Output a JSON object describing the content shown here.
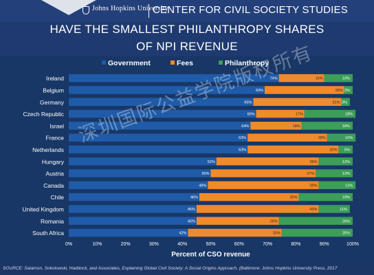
{
  "header": {
    "institution": "Johns Hopkins University",
    "center": "CENTER FOR CIVIL SOCIETY STUDIES"
  },
  "watermark": "深圳国际公益学院版权所有",
  "footer": {
    "source": "SOURCE: Salamon, Sokolowski, Haddock, and Associates, Explaining Global Civil Society: A Social Origins Approach, (Baltimore: Johns Hopkins University Press, 2017"
  },
  "colors": {
    "government": "#1f5ba8",
    "fees": "#f08a2b",
    "philanthropy": "#3c9e58"
  },
  "chart_data": {
    "type": "bar",
    "orientation": "horizontal",
    "stacked": true,
    "title": "HAVE THE SMALLEST PHILANTHROPY SHARES",
    "subtitle": "OF NPI REVENUE",
    "xlabel": "Percent of CSO revenue",
    "ylabel": "",
    "xlim": [
      0,
      100
    ],
    "x_ticks": [
      "0%",
      "10%",
      "20%",
      "30%",
      "40%",
      "50%",
      "60%",
      "70%",
      "80%",
      "90%",
      "100%"
    ],
    "legend_position": "top",
    "categories": [
      "Ireland",
      "Belgium",
      "Germany",
      "Czech Republic",
      "Israel",
      "France",
      "Netherlands",
      "Hungary",
      "Austria",
      "Canada",
      "Chile",
      "United Kingdom",
      "Romania",
      "South Africa"
    ],
    "series": [
      {
        "name": "Government",
        "values": [
          74,
          69,
          65,
          66,
          64,
          63,
          63,
          52,
          50,
          49,
          46,
          45,
          45,
          42
        ],
        "labels": [
          "74%",
          "69%",
          "65%",
          "66%",
          "64%",
          "63%",
          "63%",
          "52%",
          "50%",
          "49%",
          "46%",
          "45%",
          "45%",
          "42%"
        ]
      },
      {
        "name": "Fees",
        "values": [
          16,
          28,
          31,
          17,
          18,
          28,
          32,
          36,
          37,
          39,
          35,
          43,
          29,
          33
        ],
        "labels": [
          "16%",
          "28%",
          "31%",
          "17%",
          "18%",
          "28%",
          "32%",
          "36%",
          "37%",
          "39%",
          "35%",
          "43%",
          "29%",
          "33%"
        ]
      },
      {
        "name": "Philanthropy",
        "values": [
          10,
          3,
          3,
          18,
          18,
          10,
          5,
          12,
          13,
          13,
          19,
          11,
          26,
          25
        ],
        "labels": [
          "10%",
          "3%",
          "3%",
          "18%",
          "18%",
          "10%",
          "5%",
          "12%",
          "13%",
          "13%",
          "19%",
          "11%",
          "26%",
          "25%"
        ]
      }
    ]
  }
}
